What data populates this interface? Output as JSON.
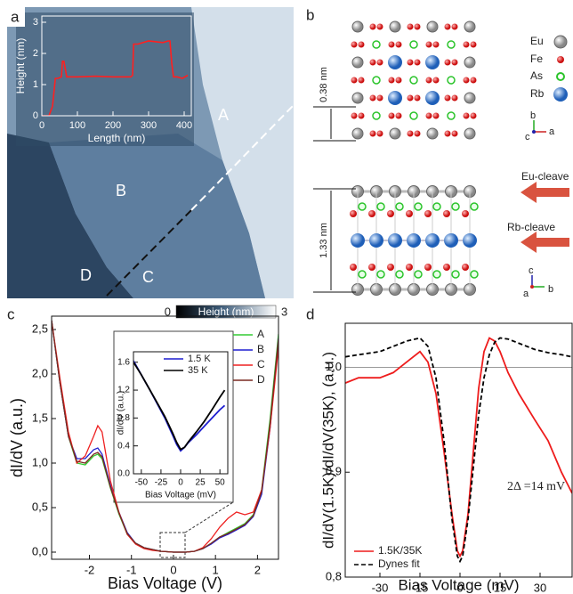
{
  "panel_labels": [
    "a",
    "b",
    "c",
    "d"
  ],
  "stm_image": {
    "regions": [
      "A",
      "B",
      "C",
      "D"
    ],
    "colorbar": {
      "min": 0,
      "label": "Height (nm)",
      "max": 3
    }
  },
  "structure": {
    "legend": [
      "Eu",
      "Fe",
      "As",
      "Rb"
    ],
    "dimensions": [
      "0.38 nm",
      "1.33 nm"
    ],
    "cleaves": [
      "Eu-cleave",
      "Rb-cleave"
    ],
    "axes_top": [
      "b",
      "c",
      "a"
    ],
    "axes_bottom": [
      "c",
      "a",
      "b"
    ]
  },
  "chart_data": [
    {
      "type": "line",
      "x_label": "Length (nm)",
      "y_label": "Height (nm)",
      "x": [
        0,
        20,
        30,
        38,
        45,
        55,
        58,
        62,
        70,
        100,
        150,
        200,
        250,
        255,
        258,
        262,
        270,
        300,
        340,
        355,
        360,
        365,
        370,
        380,
        395,
        410
      ],
      "series": [
        {
          "name": null,
          "color": "#ff2020",
          "values": [
            0,
            0,
            0.3,
            1.2,
            1.2,
            1.25,
            1.75,
            1.75,
            1.25,
            1.25,
            1.27,
            1.25,
            1.25,
            1.3,
            2.3,
            2.3,
            2.3,
            2.4,
            2.35,
            2.4,
            2.4,
            1.7,
            1.25,
            1.25,
            1.2,
            1.3
          ]
        }
      ],
      "xlim": [
        0,
        420
      ],
      "ylim": [
        0,
        3.2
      ],
      "xticks": [
        0,
        100,
        200,
        300,
        400
      ],
      "yticks": [
        0,
        1,
        2,
        3
      ]
    },
    {
      "type": "line",
      "x_label": "Bias Voltage (V)",
      "y_label": "dI/dV (a.u.)",
      "legend": "upper right",
      "x": [
        -2.9,
        -2.7,
        -2.5,
        -2.3,
        -2.1,
        -1.9,
        -1.8,
        -1.7,
        -1.5,
        -1.3,
        -1.1,
        -0.9,
        -0.7,
        -0.5,
        -0.3,
        0,
        0.3,
        0.5,
        0.7,
        0.9,
        1.1,
        1.3,
        1.5,
        1.7,
        1.9,
        2.1,
        2.3,
        2.5
      ],
      "series": [
        {
          "name": "A",
          "color": "#33cc33",
          "values": [
            2.6,
            1.9,
            1.3,
            1.0,
            0.98,
            1.08,
            1.1,
            1.05,
            0.72,
            0.43,
            0.2,
            0.1,
            0.05,
            0.03,
            0.01,
            0.0,
            0.0,
            0.01,
            0.04,
            0.1,
            0.17,
            0.22,
            0.27,
            0.32,
            0.42,
            0.7,
            1.5,
            2.45
          ]
        },
        {
          "name": "B",
          "color": "#1f1fd0",
          "values": [
            2.6,
            1.9,
            1.3,
            1.05,
            1.05,
            1.15,
            1.17,
            1.1,
            0.75,
            0.45,
            0.22,
            0.1,
            0.05,
            0.03,
            0.01,
            0.0,
            0.0,
            0.01,
            0.04,
            0.09,
            0.16,
            0.2,
            0.25,
            0.3,
            0.4,
            0.65,
            1.4,
            2.4
          ]
        },
        {
          "name": "C",
          "color": "#ee2020",
          "values": [
            2.6,
            1.95,
            1.35,
            1.0,
            1.08,
            1.3,
            1.42,
            1.35,
            0.8,
            0.45,
            0.2,
            0.09,
            0.04,
            0.02,
            0.01,
            0.0,
            0.0,
            0.01,
            0.05,
            0.15,
            0.28,
            0.38,
            0.45,
            0.42,
            0.45,
            0.7,
            1.4,
            2.3
          ]
        },
        {
          "name": "D",
          "color": "#7a2a20",
          "values": [
            2.6,
            1.9,
            1.3,
            1.02,
            1.0,
            1.1,
            1.12,
            1.07,
            0.73,
            0.44,
            0.21,
            0.1,
            0.05,
            0.03,
            0.01,
            0.0,
            0.0,
            0.01,
            0.04,
            0.1,
            0.17,
            0.21,
            0.26,
            0.31,
            0.41,
            0.68,
            1.45,
            2.4
          ]
        }
      ],
      "xlim": [
        -2.9,
        2.5
      ],
      "ylim": [
        -0.08,
        2.65
      ],
      "xticks": [
        -2,
        -1,
        0,
        1,
        2
      ],
      "yticks": [
        {
          "value": 0,
          "label": "0,0"
        },
        {
          "value": 0.5,
          "label": "0,5"
        },
        {
          "value": 1,
          "label": "1,0"
        },
        {
          "value": 1.5,
          "label": "1,5"
        },
        {
          "value": 2,
          "label": "2,0"
        },
        {
          "value": 2.5,
          "label": "2,5"
        }
      ]
    },
    {
      "type": "line",
      "x_label": "Bias Voltage (mV)",
      "y_label": "dI/dV (a.u.)",
      "legend": "upper right",
      "x": [
        -60,
        -50,
        -40,
        -30,
        -20,
        -10,
        -5,
        0,
        5,
        10,
        20,
        30,
        40,
        50,
        56
      ],
      "series": [
        {
          "name": "1.5 K",
          "color": "#1f1fd0",
          "values": [
            1.62,
            1.42,
            1.22,
            1.01,
            0.8,
            0.55,
            0.42,
            0.33,
            0.38,
            0.45,
            0.56,
            0.68,
            0.8,
            0.92,
            0.98
          ]
        },
        {
          "name": "35 K",
          "color": "#000000",
          "values": [
            1.6,
            1.42,
            1.22,
            1.02,
            0.82,
            0.58,
            0.45,
            0.35,
            0.38,
            0.46,
            0.6,
            0.75,
            0.92,
            1.1,
            1.2
          ]
        }
      ],
      "xlim": [
        -60,
        60
      ],
      "ylim": [
        0,
        1.75
      ],
      "xticks": [
        -50,
        -25,
        0,
        25,
        50
      ],
      "yticks": [
        {
          "value": 0,
          "label": "0.0"
        },
        {
          "value": 0.4,
          "label": "0.4"
        },
        {
          "value": 0.8,
          "label": "0.8"
        },
        {
          "value": 1.2,
          "label": "1.2"
        },
        {
          "value": 1.6,
          "label": "1.6"
        }
      ]
    },
    {
      "type": "line",
      "x_label": "Bias Voltage (mV)",
      "y_label": "dI/dV(1.5K)/dI/dV(35K), (a.u.)",
      "legend": "lower left",
      "annotation": "2Δ =14 mV",
      "reference_line": 1,
      "x": [
        -43,
        -38,
        -30,
        -25,
        -20,
        -15,
        -12,
        -9,
        -6,
        -3,
        -1,
        0,
        1,
        3,
        5,
        7,
        9,
        11,
        13,
        15,
        18,
        22,
        28,
        33,
        38,
        42
      ],
      "series": [
        {
          "name": "1.5K/35K",
          "color": "#ee1c1c",
          "values": [
            0.985,
            0.99,
            0.99,
            0.995,
            1.005,
            1.015,
            1.005,
            0.975,
            0.92,
            0.86,
            0.825,
            0.82,
            0.825,
            0.86,
            0.92,
            0.98,
            1.015,
            1.028,
            1.025,
            1.015,
            0.995,
            0.975,
            0.95,
            0.93,
            0.9,
            0.88
          ]
        },
        {
          "name": "Dynes fit",
          "color": "#000000",
          "dash": true,
          "values": [
            1.01,
            1.012,
            1.015,
            1.02,
            1.025,
            1.028,
            1.02,
            0.99,
            0.93,
            0.855,
            0.82,
            0.815,
            0.82,
            0.855,
            0.905,
            0.955,
            0.99,
            1.012,
            1.024,
            1.028,
            1.027,
            1.023,
            1.017,
            1.014,
            1.012,
            1.01
          ]
        }
      ],
      "xlim": [
        -43,
        42
      ],
      "ylim": [
        0.8,
        1.042
      ],
      "xticks": [
        -30,
        -15,
        0,
        15,
        30
      ],
      "yticks": [
        {
          "value": 0.8,
          "label": "0,8"
        },
        {
          "value": 0.9,
          "label": "0,9"
        },
        {
          "value": 1,
          "label": "1,0"
        }
      ]
    }
  ]
}
